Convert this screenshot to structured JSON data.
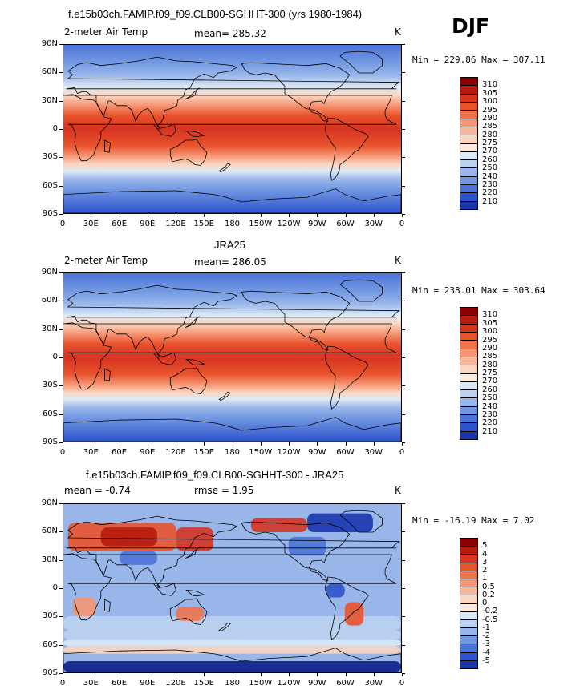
{
  "season": "DJF",
  "colors": {
    "abs_levels": [
      "#8b0000",
      "#b71a0f",
      "#d73321",
      "#e8532c",
      "#f0734a",
      "#f59573",
      "#f8b79a",
      "#fbd6c0",
      "#fdebdd",
      "#dce9f6",
      "#bcd2f0",
      "#98b6ea",
      "#7297e2",
      "#4c73d8",
      "#2f53cc",
      "#1b36ad",
      "#0b1d86",
      "#000060"
    ],
    "diff_levels": [
      "#8b0000",
      "#b71a0f",
      "#d73321",
      "#e8532c",
      "#f0734a",
      "#f59573",
      "#f8b79a",
      "#fbd6c0",
      "#fdebdd",
      "#dce9f6",
      "#bcd2f0",
      "#98b6ea",
      "#7297e2",
      "#4c73d8",
      "#2f53cc",
      "#1b36ad",
      "#0b1d86"
    ],
    "land": "#222222"
  },
  "panels": [
    {
      "title": "f.e15b03ch.FAMIP.f09_f09.CLB00-SGHHT-300 (yrs 1980-1984)",
      "left_label": "2-meter Air Temp",
      "center_label": "mean= 285.32",
      "units": "K",
      "minmax": "Min = 229.86  Max = 307.11",
      "colorbar_labels": [
        "310",
        "305",
        "300",
        "295",
        "290",
        "285",
        "280",
        "275",
        "270",
        "260",
        "250",
        "240",
        "230",
        "220",
        "210"
      ]
    },
    {
      "title": "JRA25",
      "left_label": "2-meter Air Temp",
      "center_label": "mean= 286.05",
      "units": "K",
      "minmax": "Min = 238.01  Max = 303.64",
      "colorbar_labels": [
        "310",
        "305",
        "300",
        "295",
        "290",
        "285",
        "280",
        "275",
        "270",
        "260",
        "250",
        "240",
        "230",
        "220",
        "210"
      ]
    },
    {
      "title": "f.e15b03ch.FAMIP.f09_f09.CLB00-SGHHT-300 - JRA25",
      "left_label": "mean =   -0.74",
      "center_label": "rmse =    1.95",
      "units": "K",
      "minmax": "Min = -16.19  Max =   7.02",
      "colorbar_labels": [
        "5",
        "4",
        "3",
        "2",
        "1",
        "0.5",
        "0.2",
        "0",
        "-0.2",
        "-0.5",
        "-1",
        "-2",
        "-3",
        "-4",
        "-5"
      ]
    }
  ],
  "lat_ticks": [
    "90N",
    "60N",
    "30N",
    "0",
    "30S",
    "60S",
    "90S"
  ],
  "lon_ticks": [
    "0",
    "30E",
    "60E",
    "90E",
    "120E",
    "150E",
    "180",
    "150W",
    "120W",
    "90W",
    "60W",
    "30W",
    "0"
  ]
}
